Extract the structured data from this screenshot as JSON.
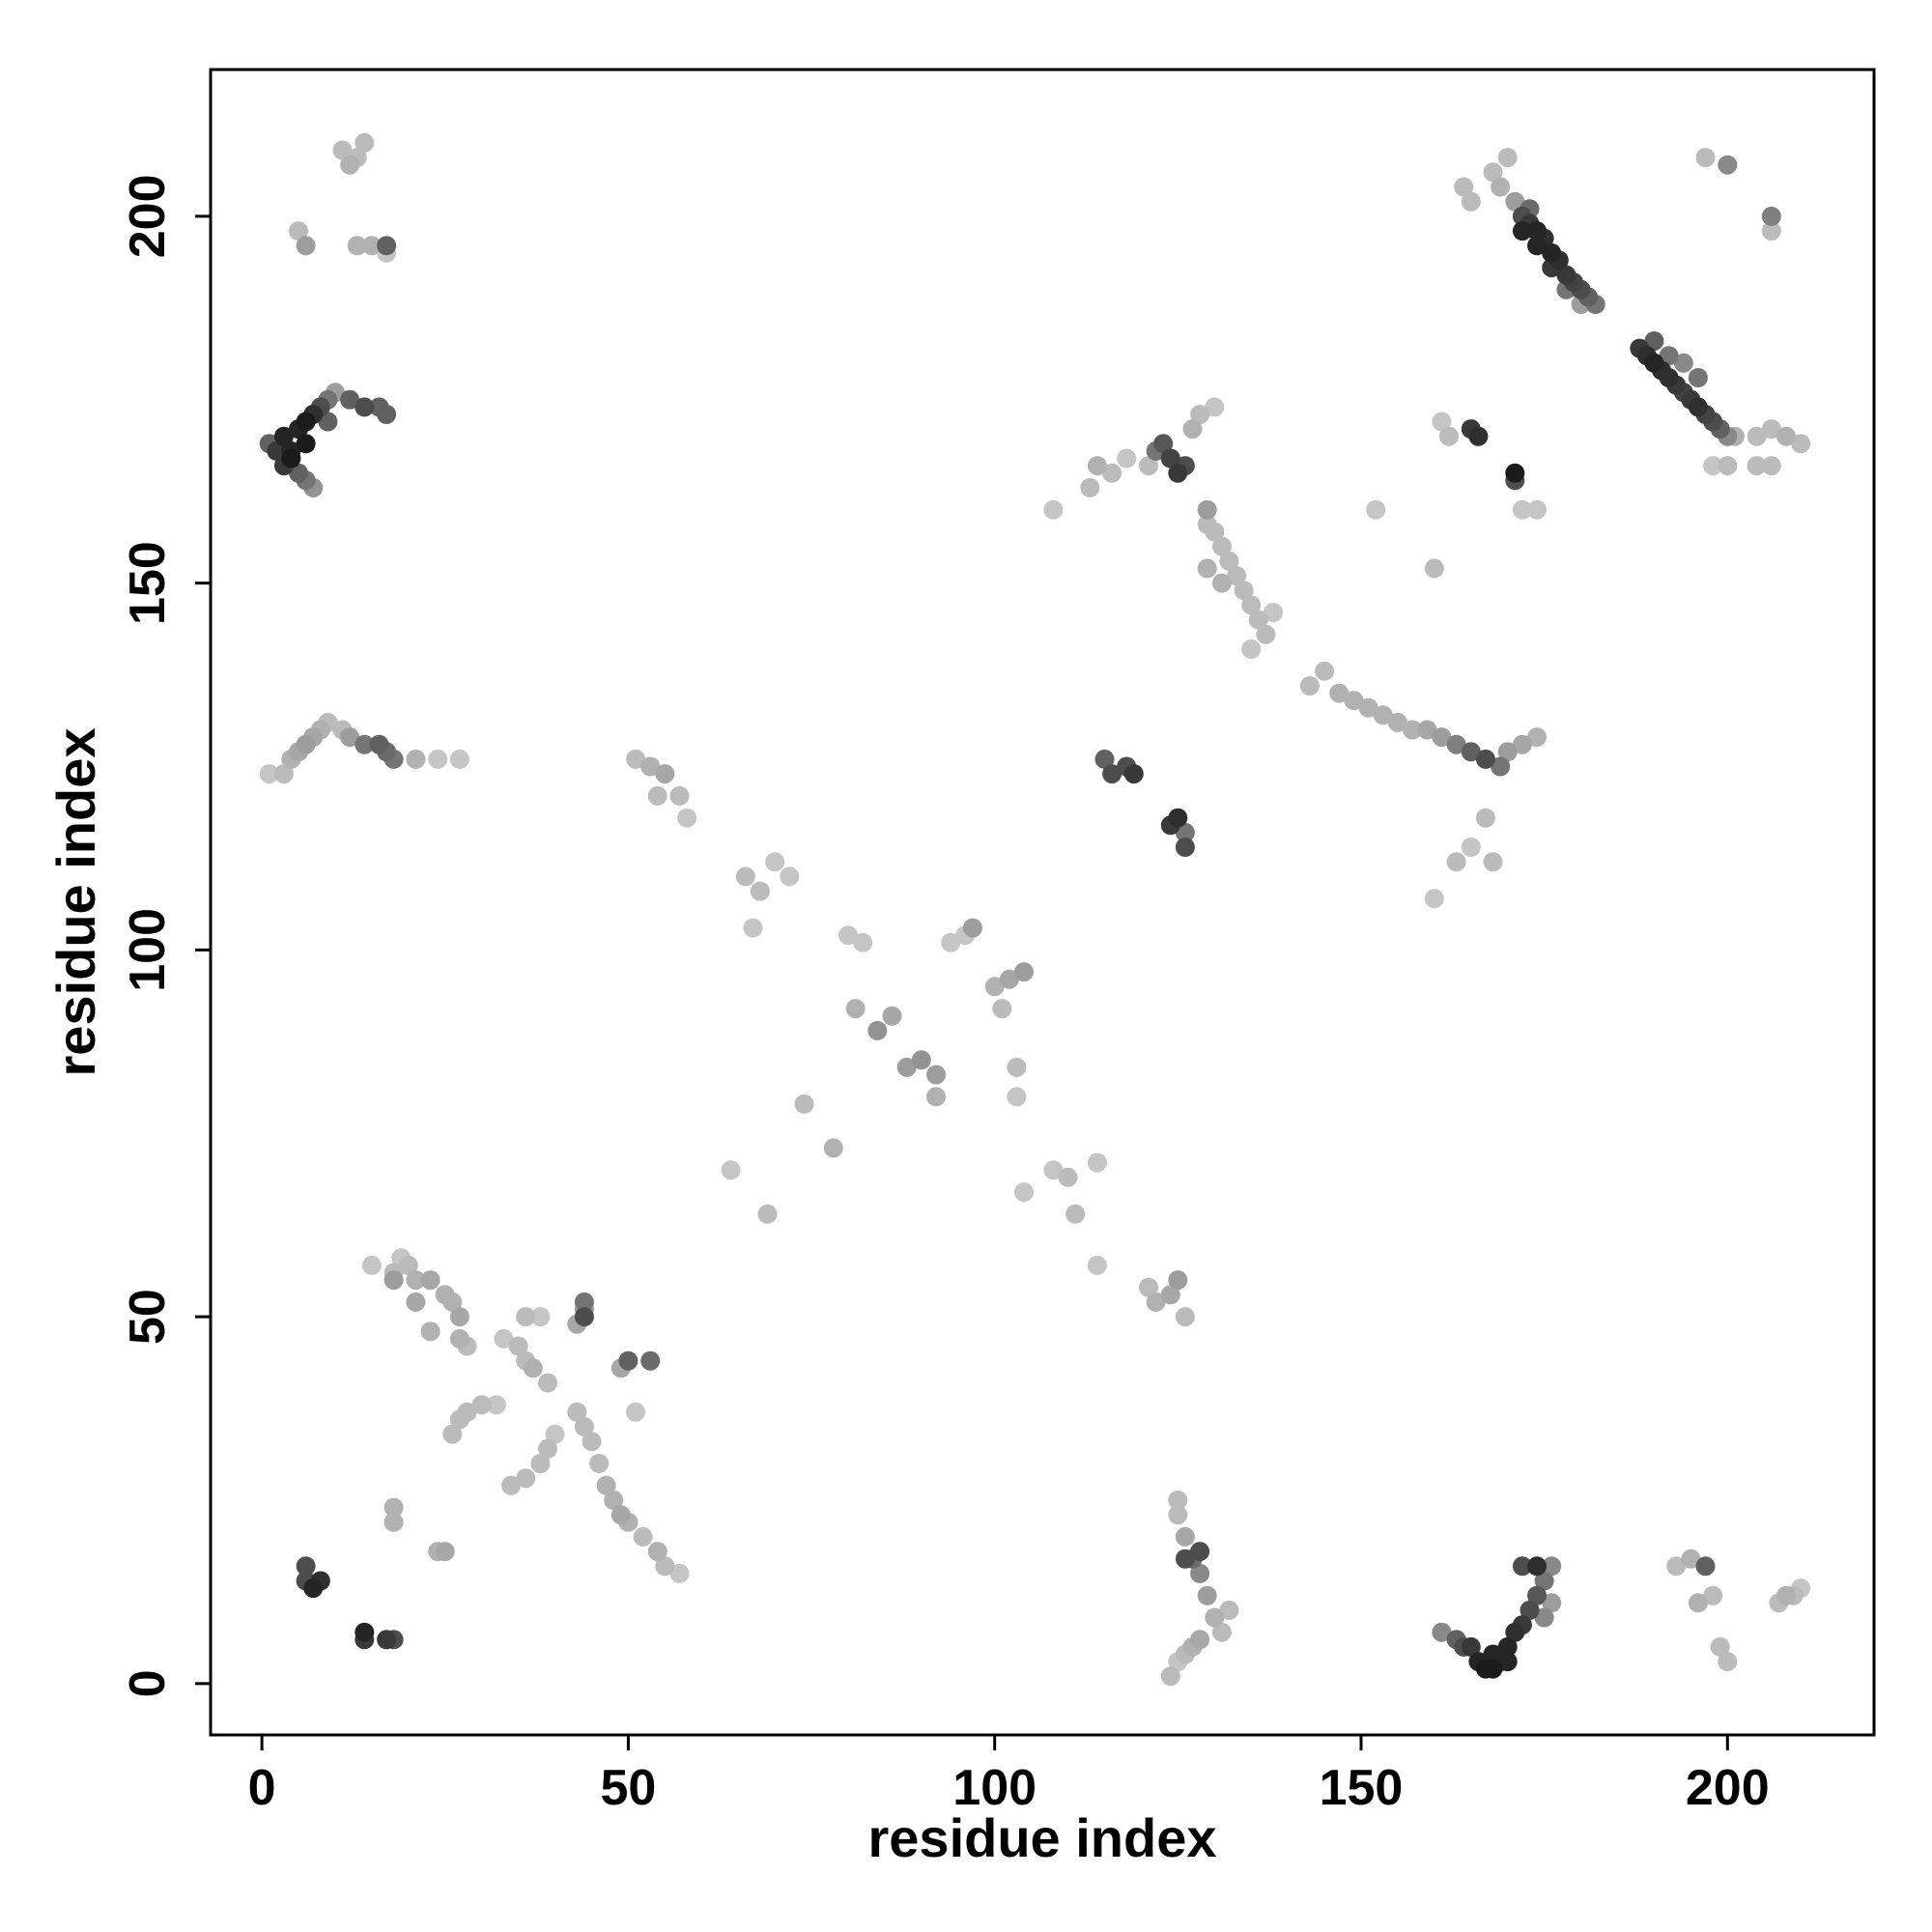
{
  "chart_data": {
    "type": "scatter",
    "title": "",
    "xlabel": "residue index",
    "ylabel": "residue index",
    "xlim": [
      -7,
      220
    ],
    "ylim": [
      -7,
      220
    ],
    "x_ticks": [
      0,
      50,
      100,
      150,
      200
    ],
    "y_ticks": [
      0,
      50,
      100,
      150,
      200
    ],
    "grid": false,
    "legend": "none",
    "color_scale": {
      "low": "#d9d9d9",
      "high": "#111111",
      "encodes": "contact strength (0 = light, 1 = dark)"
    },
    "points": [
      [
        1,
        169,
        0.6
      ],
      [
        2,
        168,
        0.8
      ],
      [
        3,
        170,
        0.9
      ],
      [
        4,
        167,
        0.95
      ],
      [
        5,
        171,
        0.9
      ],
      [
        6,
        172,
        0.95
      ],
      [
        7,
        173,
        0.85
      ],
      [
        8,
        174,
        0.7
      ],
      [
        9,
        175,
        0.5
      ],
      [
        5,
        165,
        0.6
      ],
      [
        6,
        164,
        0.5
      ],
      [
        7,
        163,
        0.35
      ],
      [
        9,
        172,
        0.6
      ],
      [
        10,
        176,
        0.3
      ],
      [
        12,
        175,
        0.6
      ],
      [
        14,
        174,
        0.7
      ],
      [
        16,
        174,
        0.6
      ],
      [
        17,
        173,
        0.6
      ],
      [
        3,
        166,
        0.8
      ],
      [
        4,
        168,
        0.9
      ],
      [
        6,
        169,
        0.95
      ],
      [
        11,
        209,
        0.15
      ],
      [
        13,
        208,
        0.15
      ],
      [
        14,
        210,
        0.15
      ],
      [
        12,
        207,
        0.2
      ],
      [
        13,
        196,
        0.2
      ],
      [
        15,
        196,
        0.2
      ],
      [
        17,
        196,
        0.6
      ],
      [
        5,
        198,
        0.15
      ],
      [
        6,
        196,
        0.3
      ],
      [
        17,
        195,
        0.1
      ],
      [
        1,
        124,
        0.1
      ],
      [
        3,
        124,
        0.15
      ],
      [
        4,
        126,
        0.2
      ],
      [
        5,
        127,
        0.25
      ],
      [
        6,
        128,
        0.3
      ],
      [
        7,
        129,
        0.25
      ],
      [
        8,
        130,
        0.2
      ],
      [
        9,
        131,
        0.15
      ],
      [
        11,
        130,
        0.15
      ],
      [
        12,
        129,
        0.3
      ],
      [
        14,
        128,
        0.5
      ],
      [
        16,
        128,
        0.6
      ],
      [
        17,
        127,
        0.55
      ],
      [
        18,
        126,
        0.5
      ],
      [
        21,
        126,
        0.2
      ],
      [
        24,
        126,
        0.1
      ],
      [
        27,
        126,
        0.1
      ],
      [
        6,
        16,
        0.7
      ],
      [
        6,
        14,
        0.7
      ],
      [
        7,
        13,
        0.9
      ],
      [
        8,
        14,
        0.85
      ],
      [
        14,
        7,
        0.9
      ],
      [
        14,
        6,
        0.8
      ],
      [
        17,
        6,
        0.8
      ],
      [
        18,
        6,
        0.7
      ],
      [
        15,
        57,
        0.1
      ],
      [
        18,
        56,
        0.15
      ],
      [
        19,
        58,
        0.1
      ],
      [
        20,
        57,
        0.15
      ],
      [
        21,
        55,
        0.2
      ],
      [
        23,
        55,
        0.25
      ],
      [
        25,
        53,
        0.2
      ],
      [
        26,
        52,
        0.2
      ],
      [
        27,
        50,
        0.25
      ],
      [
        27,
        47,
        0.2
      ],
      [
        28,
        46,
        0.15
      ],
      [
        18,
        55,
        0.3
      ],
      [
        21,
        52,
        0.25
      ],
      [
        23,
        48,
        0.2
      ],
      [
        33,
        47,
        0.1
      ],
      [
        35,
        46,
        0.15
      ],
      [
        36,
        44,
        0.15
      ],
      [
        37,
        43,
        0.2
      ],
      [
        39,
        41,
        0.15
      ],
      [
        36,
        50,
        0.15
      ],
      [
        38,
        50,
        0.1
      ],
      [
        26,
        34,
        0.15
      ],
      [
        27,
        36,
        0.15
      ],
      [
        28,
        37,
        0.15
      ],
      [
        30,
        38,
        0.15
      ],
      [
        32,
        38,
        0.1
      ],
      [
        34,
        27,
        0.15
      ],
      [
        36,
        28,
        0.15
      ],
      [
        38,
        30,
        0.15
      ],
      [
        39,
        32,
        0.15
      ],
      [
        40,
        34,
        0.1
      ],
      [
        43,
        37,
        0.15
      ],
      [
        44,
        35,
        0.15
      ],
      [
        45,
        33,
        0.15
      ],
      [
        46,
        30,
        0.15
      ],
      [
        47,
        27,
        0.2
      ],
      [
        48,
        25,
        0.2
      ],
      [
        49,
        23,
        0.25
      ],
      [
        50,
        22,
        0.2
      ],
      [
        52,
        20,
        0.15
      ],
      [
        54,
        18,
        0.2
      ],
      [
        55,
        16,
        0.15
      ],
      [
        57,
        15,
        0.1
      ],
      [
        43,
        49,
        0.25
      ],
      [
        44,
        51,
        0.3
      ],
      [
        44,
        52,
        0.5
      ],
      [
        44,
        50,
        0.7
      ],
      [
        49,
        43,
        0.25
      ],
      [
        50,
        44,
        0.6
      ],
      [
        53,
        44,
        0.55
      ],
      [
        51,
        37,
        0.1
      ],
      [
        18,
        24,
        0.2
      ],
      [
        18,
        22,
        0.2
      ],
      [
        24,
        18,
        0.2
      ],
      [
        25,
        18,
        0.25
      ],
      [
        51,
        126,
        0.15
      ],
      [
        53,
        125,
        0.2
      ],
      [
        55,
        124,
        0.25
      ],
      [
        54,
        121,
        0.15
      ],
      [
        57,
        121,
        0.15
      ],
      [
        58,
        118,
        0.1
      ],
      [
        64,
        70,
        0.1
      ],
      [
        69,
        64,
        0.15
      ],
      [
        66,
        110,
        0.15
      ],
      [
        68,
        108,
        0.15
      ],
      [
        70,
        112,
        0.1
      ],
      [
        72,
        110,
        0.1
      ],
      [
        67,
        103,
        0.1
      ],
      [
        74,
        79,
        0.15
      ],
      [
        78,
        73,
        0.2
      ],
      [
        80,
        102,
        0.1
      ],
      [
        82,
        101,
        0.1
      ],
      [
        81,
        92,
        0.2
      ],
      [
        84,
        89,
        0.35
      ],
      [
        86,
        91,
        0.25
      ],
      [
        88,
        84,
        0.3
      ],
      [
        90,
        85,
        0.35
      ],
      [
        92,
        83,
        0.3
      ],
      [
        92,
        80,
        0.2
      ],
      [
        94,
        101,
        0.1
      ],
      [
        96,
        102,
        0.1
      ],
      [
        97,
        103,
        0.3
      ],
      [
        100,
        95,
        0.2
      ],
      [
        102,
        96,
        0.25
      ],
      [
        104,
        97,
        0.3
      ],
      [
        101,
        92,
        0.15
      ],
      [
        103,
        84,
        0.15
      ],
      [
        103,
        80,
        0.1
      ],
      [
        104,
        67,
        0.1
      ],
      [
        108,
        70,
        0.1
      ],
      [
        110,
        69,
        0.15
      ],
      [
        111,
        64,
        0.15
      ],
      [
        114,
        71,
        0.1
      ],
      [
        113,
        163,
        0.15
      ],
      [
        114,
        166,
        0.2
      ],
      [
        116,
        165,
        0.15
      ],
      [
        118,
        167,
        0.1
      ],
      [
        121,
        166,
        0.15
      ],
      [
        122,
        168,
        0.5
      ],
      [
        123,
        169,
        0.65
      ],
      [
        124,
        167,
        0.75
      ],
      [
        125,
        165,
        0.8
      ],
      [
        126,
        166,
        0.7
      ],
      [
        127,
        171,
        0.2
      ],
      [
        128,
        173,
        0.15
      ],
      [
        130,
        174,
        0.1
      ],
      [
        108,
        160,
        0.1
      ],
      [
        129,
        158,
        0.15
      ],
      [
        130,
        157,
        0.15
      ],
      [
        131,
        155,
        0.15
      ],
      [
        132,
        153,
        0.15
      ],
      [
        133,
        151,
        0.15
      ],
      [
        134,
        149,
        0.15
      ],
      [
        135,
        147,
        0.15
      ],
      [
        136,
        145,
        0.15
      ],
      [
        137,
        143,
        0.15
      ],
      [
        138,
        146,
        0.1
      ],
      [
        129,
        160,
        0.3
      ],
      [
        129,
        152,
        0.2
      ],
      [
        131,
        150,
        0.2
      ],
      [
        135,
        141,
        0.1
      ],
      [
        143,
        136,
        0.15
      ],
      [
        145,
        138,
        0.15
      ],
      [
        147,
        135,
        0.2
      ],
      [
        149,
        134,
        0.2
      ],
      [
        151,
        133,
        0.2
      ],
      [
        153,
        132,
        0.2
      ],
      [
        155,
        131,
        0.2
      ],
      [
        157,
        130,
        0.2
      ],
      [
        159,
        130,
        0.25
      ],
      [
        161,
        129,
        0.3
      ],
      [
        163,
        128,
        0.45
      ],
      [
        165,
        127,
        0.6
      ],
      [
        167,
        126,
        0.7
      ],
      [
        169,
        125,
        0.5
      ],
      [
        170,
        127,
        0.3
      ],
      [
        172,
        128,
        0.25
      ],
      [
        174,
        129,
        0.2
      ],
      [
        115,
        126,
        0.6
      ],
      [
        116,
        124,
        0.7
      ],
      [
        118,
        125,
        0.7
      ],
      [
        119,
        124,
        0.8
      ],
      [
        124,
        117,
        0.8
      ],
      [
        125,
        118,
        0.85
      ],
      [
        126,
        114,
        0.7
      ],
      [
        126,
        116,
        0.5
      ],
      [
        152,
        160,
        0.1
      ],
      [
        160,
        152,
        0.15
      ],
      [
        161,
        172,
        0.1
      ],
      [
        162,
        170,
        0.15
      ],
      [
        165,
        171,
        0.8
      ],
      [
        166,
        170,
        0.85
      ],
      [
        171,
        165,
        0.95
      ],
      [
        171,
        164,
        0.7
      ],
      [
        172,
        160,
        0.1
      ],
      [
        174,
        160,
        0.1
      ],
      [
        160,
        107,
        0.1
      ],
      [
        163,
        112,
        0.15
      ],
      [
        165,
        114,
        0.1
      ],
      [
        167,
        118,
        0.15
      ],
      [
        168,
        112,
        0.15
      ],
      [
        114,
        57,
        0.1
      ],
      [
        121,
        54,
        0.15
      ],
      [
        122,
        52,
        0.2
      ],
      [
        124,
        53,
        0.25
      ],
      [
        125,
        55,
        0.3
      ],
      [
        126,
        50,
        0.15
      ],
      [
        125,
        25,
        0.15
      ],
      [
        125,
        23,
        0.15
      ],
      [
        126,
        20,
        0.25
      ],
      [
        127,
        17,
        0.55
      ],
      [
        128,
        15,
        0.4
      ],
      [
        129,
        12,
        0.3
      ],
      [
        130,
        9,
        0.2
      ],
      [
        131,
        7,
        0.15
      ],
      [
        132,
        10,
        0.15
      ],
      [
        125,
        3,
        0.1
      ],
      [
        126,
        4,
        0.15
      ],
      [
        127,
        5,
        0.2
      ],
      [
        128,
        6,
        0.25
      ],
      [
        126,
        17,
        0.7
      ],
      [
        128,
        18,
        0.7
      ],
      [
        124,
        1,
        0.15
      ],
      [
        161,
        7,
        0.4
      ],
      [
        163,
        6,
        0.6
      ],
      [
        164,
        5,
        0.7
      ],
      [
        165,
        5,
        0.8
      ],
      [
        166,
        3,
        0.9
      ],
      [
        167,
        2,
        0.95
      ],
      [
        168,
        4,
        0.9
      ],
      [
        169,
        3,
        0.85
      ],
      [
        170,
        5,
        0.9
      ],
      [
        171,
        7,
        0.85
      ],
      [
        172,
        8,
        0.8
      ],
      [
        173,
        10,
        0.7
      ],
      [
        174,
        12,
        0.65
      ],
      [
        175,
        14,
        0.5
      ],
      [
        176,
        16,
        0.4
      ],
      [
        172,
        16,
        0.7
      ],
      [
        174,
        16,
        0.85
      ],
      [
        175,
        9,
        0.4
      ],
      [
        176,
        11,
        0.3
      ],
      [
        168,
        2,
        0.95
      ],
      [
        170,
        3,
        0.9
      ],
      [
        193,
        16,
        0.15
      ],
      [
        195,
        17,
        0.2
      ],
      [
        197,
        16,
        0.6
      ],
      [
        198,
        12,
        0.15
      ],
      [
        196,
        11,
        0.2
      ],
      [
        199,
        5,
        0.15
      ],
      [
        200,
        3,
        0.15
      ],
      [
        207,
        11,
        0.15
      ],
      [
        208,
        12,
        0.2
      ],
      [
        209,
        12,
        0.15
      ],
      [
        210,
        13,
        0.1
      ],
      [
        164,
        204,
        0.15
      ],
      [
        165,
        202,
        0.15
      ],
      [
        168,
        206,
        0.15
      ],
      [
        169,
        204,
        0.2
      ],
      [
        170,
        208,
        0.15
      ],
      [
        171,
        202,
        0.3
      ],
      [
        172,
        200,
        0.7
      ],
      [
        173,
        199,
        0.8
      ],
      [
        174,
        198,
        0.9
      ],
      [
        175,
        197,
        0.85
      ],
      [
        176,
        195,
        0.9
      ],
      [
        177,
        194,
        0.85
      ],
      [
        178,
        192,
        0.8
      ],
      [
        179,
        191,
        0.75
      ],
      [
        180,
        190,
        0.7
      ],
      [
        181,
        189,
        0.6
      ],
      [
        182,
        188,
        0.5
      ],
      [
        172,
        198,
        0.9
      ],
      [
        174,
        196,
        0.9
      ],
      [
        176,
        193,
        0.8
      ],
      [
        178,
        190,
        0.5
      ],
      [
        180,
        188,
        0.3
      ],
      [
        173,
        201,
        0.55
      ],
      [
        188,
        182,
        0.8
      ],
      [
        189,
        181,
        0.85
      ],
      [
        190,
        180,
        0.9
      ],
      [
        191,
        179,
        0.85
      ],
      [
        192,
        178,
        0.85
      ],
      [
        193,
        177,
        0.8
      ],
      [
        194,
        176,
        0.75
      ],
      [
        195,
        175,
        0.8
      ],
      [
        196,
        174,
        0.85
      ],
      [
        197,
        173,
        0.75
      ],
      [
        198,
        172,
        0.7
      ],
      [
        199,
        171,
        0.6
      ],
      [
        200,
        170,
        0.4
      ],
      [
        190,
        183,
        0.6
      ],
      [
        192,
        181,
        0.5
      ],
      [
        194,
        180,
        0.4
      ],
      [
        196,
        178,
        0.5
      ],
      [
        197,
        208,
        0.15
      ],
      [
        200,
        207,
        0.4
      ],
      [
        206,
        200,
        0.45
      ],
      [
        206,
        198,
        0.15
      ],
      [
        201,
        170,
        0.2
      ],
      [
        204,
        170,
        0.15
      ],
      [
        206,
        171,
        0.15
      ],
      [
        208,
        170,
        0.2
      ],
      [
        210,
        169,
        0.15
      ],
      [
        198,
        166,
        0.1
      ],
      [
        200,
        166,
        0.15
      ],
      [
        204,
        166,
        0.15
      ],
      [
        206,
        166,
        0.15
      ]
    ]
  }
}
